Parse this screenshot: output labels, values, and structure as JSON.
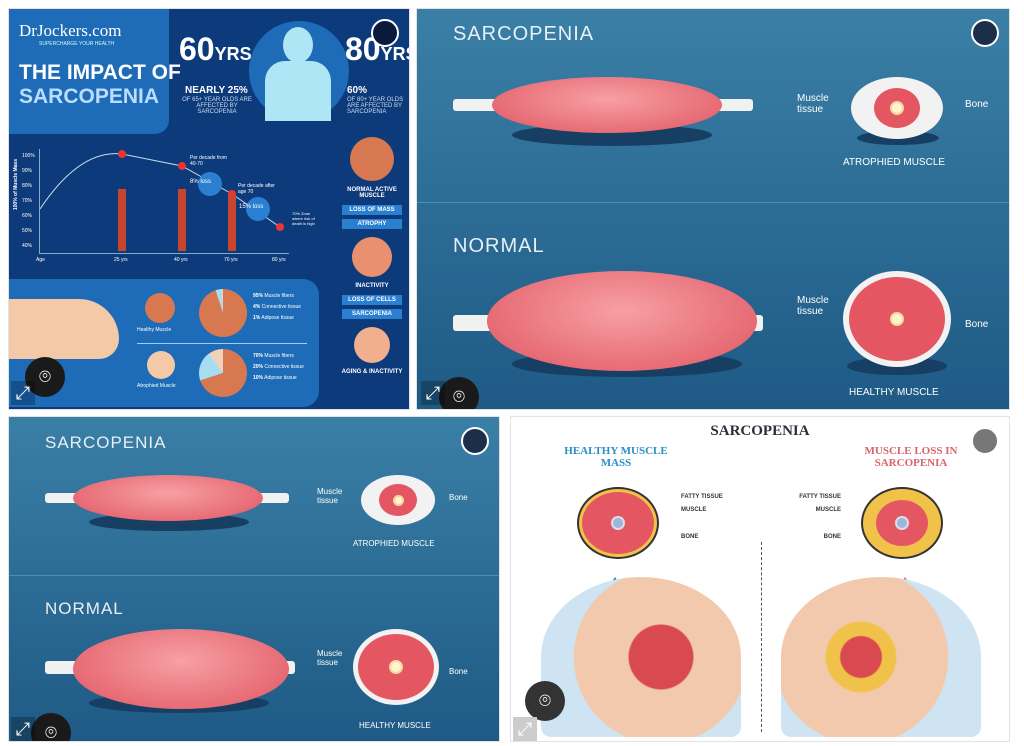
{
  "tiles": [
    {
      "brand": "DrJockers.com",
      "tagline": "SUPERCHARGE YOUR HEALTH",
      "title_line1": "THE IMPACT OF",
      "title_line2": "SARCOPENIA",
      "stat1": {
        "big": "60",
        "unit": "YRS",
        "pct": "NEARLY 25%",
        "desc": "OF 65+ YEAR OLDS ARE AFFECTED BY SARCOPENIA"
      },
      "stat2": {
        "big": "80",
        "unit": "YRS",
        "pct": "60%",
        "desc": "OF 80+ YEAR OLDS ARE AFFECTED BY SARCOPENIA"
      },
      "chart": {
        "ylabel": "100% of Muscle Mass",
        "yticks": [
          "100%",
          "90%",
          "80%",
          "70%",
          "60%",
          "50%",
          "40%"
        ],
        "xlabel": "Age",
        "xticks": [
          "25 yrs",
          "40 yrs",
          "70 yrs",
          "80 yrs"
        ],
        "note1": "Per decade from 40-70",
        "loss1": "8% loss",
        "note2": "Per decade after age 70",
        "loss2": "15% loss",
        "zone": "70% Zone where risk of death is high"
      },
      "stages": [
        "NORMAL ACTIVE MUSCLE",
        "LOSS OF MASS",
        "ATROPHY",
        "INACTIVITY",
        "LOSS OF CELLS",
        "SARCOPENIA",
        "AGING & INACTIVITY"
      ],
      "healthy": {
        "label": "Healthy Muscle",
        "legend": [
          [
            "95%",
            "Muscle fibers"
          ],
          [
            "4%",
            "Connective tissue"
          ],
          [
            "1%",
            "Adipose tissue"
          ]
        ]
      },
      "atrophied": {
        "label": "Atrophied Muscle",
        "legend": [
          [
            "70%",
            "Muscle fibers"
          ],
          [
            "20%",
            "Connective tissue"
          ],
          [
            "10%",
            "Adipose tissue"
          ]
        ]
      }
    },
    {
      "top": "SARCOPENIA",
      "bottom": "NORMAL",
      "tissue": "Muscle tissue",
      "bone": "Bone",
      "atrophied": "ATROPHIED MUSCLE",
      "healthy": "HEALTHY MUSCLE"
    },
    {
      "top": "SARCOPENIA",
      "bottom": "NORMAL",
      "tissue": "Muscle tissue",
      "bone": "Bone",
      "atrophied": "ATROPHIED MUSCLE",
      "healthy": "HEALTHY MUSCLE"
    },
    {
      "title": "SARCOPENIA",
      "left_title": "HEALTHY MUSCLE MASS",
      "right_title": "MUSCLE LOSS IN SARCOPENIA",
      "fatty": "FATTY TISSUE",
      "muscle": "MUSCLE",
      "bone": "BONE",
      "colors": {
        "healthy": "#2a8fc6",
        "loss": "#d9646a"
      }
    }
  ],
  "icons": {
    "lens": "⌾",
    "expand": "⤢"
  }
}
